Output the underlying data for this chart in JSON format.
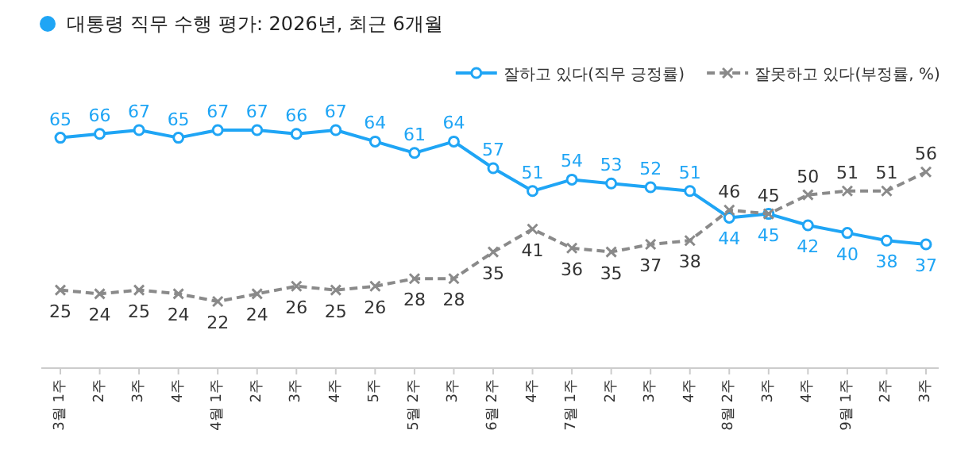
{
  "chart_data": {
    "type": "line",
    "title": "대통령 직무 수행 평가: 2026년, 최근 6개월",
    "categories": [
      "3월 1주",
      "2주",
      "3주",
      "4주",
      "4월 1주",
      "2주",
      "3주",
      "4주",
      "5주",
      "5월 2주",
      "3주",
      "6월 2주",
      "4주",
      "7월 1주",
      "2주",
      "3주",
      "4주",
      "8월 2주",
      "3주",
      "4주",
      "9월 1주",
      "2주",
      "3주"
    ],
    "series": [
      {
        "name": "잘하고 있다(직무 긍정률)",
        "color": "#1fa5f5",
        "marker": "circle",
        "line_style": "solid",
        "values": [
          65,
          66,
          67,
          65,
          67,
          67,
          66,
          67,
          64,
          61,
          64,
          57,
          51,
          54,
          53,
          52,
          51,
          44,
          45,
          42,
          40,
          38,
          37
        ]
      },
      {
        "name": "잘못하고 있다(부정률, %)",
        "color": "#8a8a8a",
        "marker": "cross",
        "line_style": "dashed",
        "values": [
          25,
          24,
          25,
          24,
          22,
          24,
          26,
          25,
          26,
          28,
          28,
          35,
          41,
          36,
          35,
          37,
          38,
          46,
          45,
          50,
          51,
          51,
          56
        ]
      }
    ],
    "data_labels": true,
    "legend": "top right",
    "grid": false
  }
}
